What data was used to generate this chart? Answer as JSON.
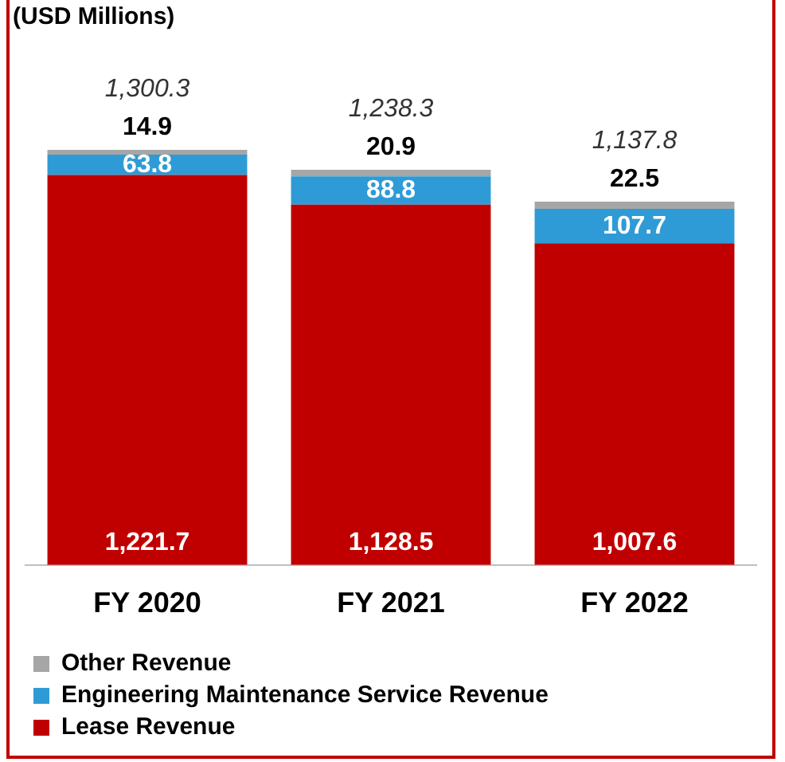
{
  "chart_data": {
    "type": "bar",
    "title": "(USD Millions)",
    "categories": [
      "FY 2020",
      "FY 2021",
      "FY 2022"
    ],
    "stacked": true,
    "series": [
      {
        "name": "Lease Revenue",
        "color": "#c00000",
        "values": [
          1221.7,
          1128.5,
          1007.6
        ],
        "value_labels": [
          "1,221.7",
          "1,128.5",
          "1,007.6"
        ]
      },
      {
        "name": "Engineering Maintenance Service Revenue",
        "color": "#2e9bd6",
        "values": [
          63.8,
          88.8,
          107.7
        ],
        "value_labels": [
          "63.8",
          "88.8",
          "107.7"
        ]
      },
      {
        "name": "Other Revenue",
        "color": "#a6a6a6",
        "values": [
          14.9,
          20.9,
          22.5
        ],
        "value_labels": [
          "14.9",
          "20.9",
          "22.5"
        ]
      }
    ],
    "totals": [
      "1,300.3",
      "1,238.3",
      "1,137.8"
    ],
    "legend": "bottom",
    "grid": false
  }
}
